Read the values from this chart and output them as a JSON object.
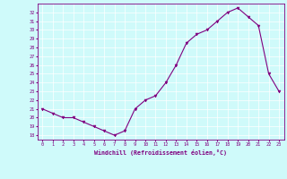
{
  "x": [
    0,
    1,
    2,
    3,
    4,
    5,
    6,
    7,
    8,
    9,
    10,
    11,
    12,
    13,
    14,
    15,
    16,
    17,
    18,
    19,
    20,
    21,
    22,
    23
  ],
  "y": [
    21,
    20.5,
    20,
    20,
    19.5,
    19,
    18.5,
    18,
    18.5,
    21,
    22,
    22.5,
    24,
    26,
    28.5,
    29.5,
    30,
    31,
    32,
    32.5,
    31.5,
    30.5,
    25,
    23
  ],
  "line_color": "#800080",
  "marker_color": "#800080",
  "bg_color": "#CFFAFA",
  "grid_color": "#FFFFFF",
  "xlabel": "Windchill (Refroidissement éolien,°C)",
  "ylabel_ticks": [
    18,
    19,
    20,
    21,
    22,
    23,
    24,
    25,
    26,
    27,
    28,
    29,
    30,
    31,
    32
  ],
  "ylim": [
    17.5,
    33.0
  ],
  "xlim": [
    -0.5,
    23.5
  ],
  "xticks": [
    0,
    1,
    2,
    3,
    4,
    5,
    6,
    7,
    8,
    9,
    10,
    11,
    12,
    13,
    14,
    15,
    16,
    17,
    18,
    19,
    20,
    21,
    22,
    23
  ]
}
